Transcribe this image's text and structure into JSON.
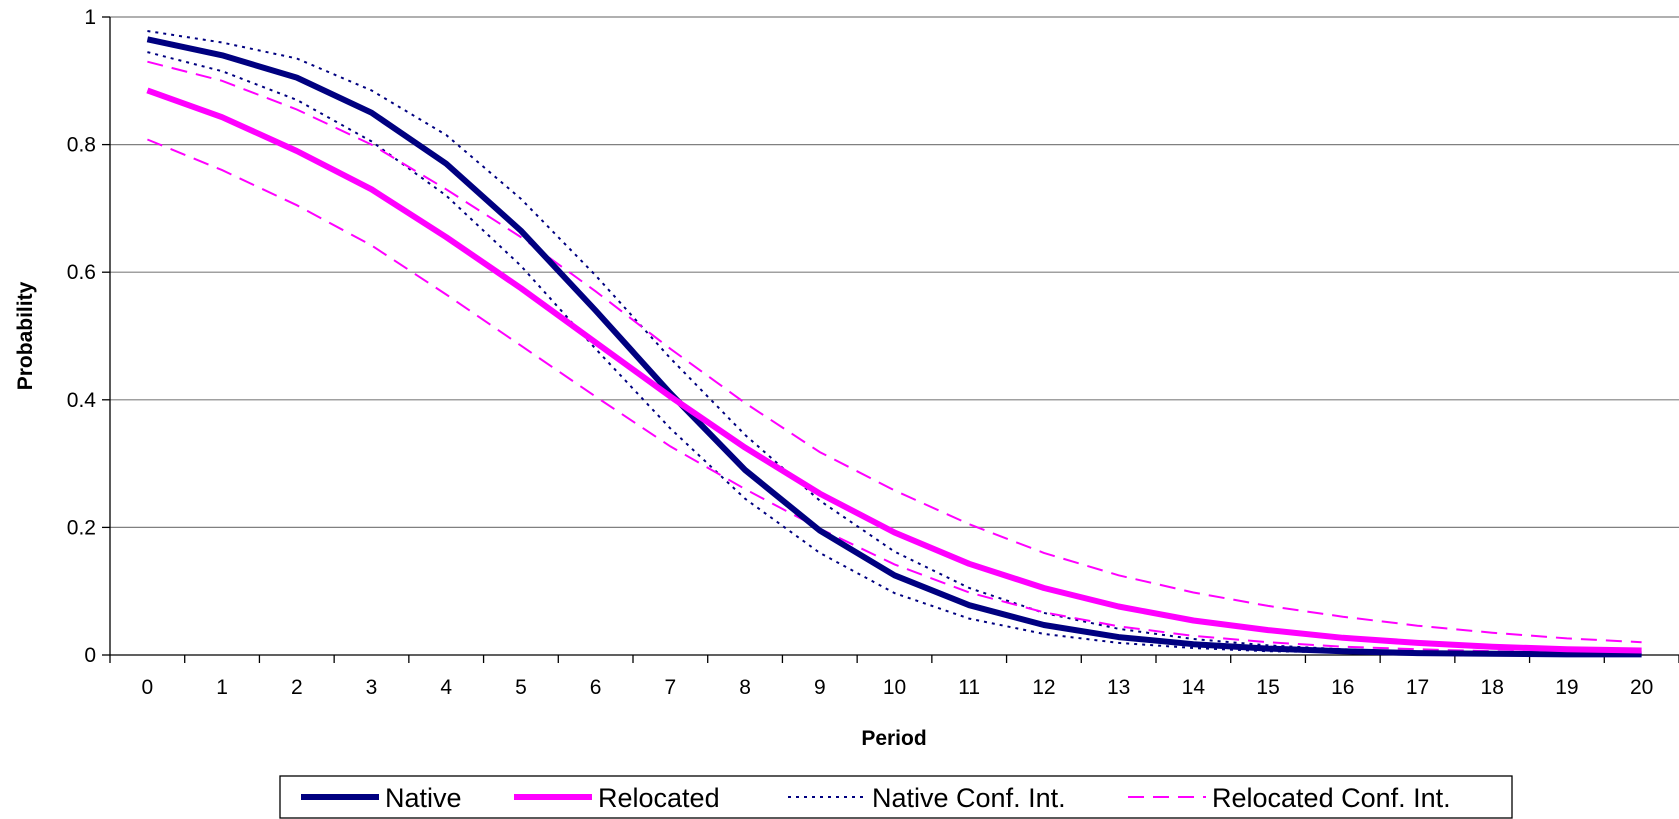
{
  "chart_data": {
    "type": "line",
    "title": "",
    "xlabel": "Period",
    "ylabel": "Probability",
    "x": [
      0,
      1,
      2,
      3,
      4,
      5,
      6,
      7,
      8,
      9,
      10,
      11,
      12,
      13,
      14,
      15,
      16,
      17,
      18,
      19,
      20
    ],
    "x_tick_labels": [
      "0",
      "1",
      "2",
      "3",
      "4",
      "5",
      "6",
      "7",
      "8",
      "9",
      "10",
      "11",
      "12",
      "13",
      "14",
      "15",
      "16",
      "17",
      "18",
      "19",
      "20"
    ],
    "xlim": [
      -0.5,
      20.5
    ],
    "ylim": [
      0,
      1
    ],
    "y_ticks": [
      0,
      0.2,
      0.4,
      0.6,
      0.8,
      1
    ],
    "y_tick_labels": [
      "0",
      "0.2",
      "0.4",
      "0.6",
      "0.8",
      "1"
    ],
    "grid": "horizontal",
    "legend_position": "bottom",
    "series": [
      {
        "name": "Native",
        "legend": "Native",
        "style": "solid-thick",
        "color": "#000080",
        "values": [
          0.965,
          0.94,
          0.905,
          0.85,
          0.77,
          0.665,
          0.54,
          0.41,
          0.29,
          0.195,
          0.125,
          0.078,
          0.047,
          0.028,
          0.017,
          0.01,
          0.006,
          0.003,
          0.002,
          0.001,
          0.001
        ]
      },
      {
        "name": "Relocated",
        "legend": "Relocated",
        "style": "solid-thick",
        "color": "#ff00ff",
        "values": [
          0.885,
          0.843,
          0.79,
          0.73,
          0.655,
          0.575,
          0.49,
          0.405,
          0.325,
          0.253,
          0.192,
          0.143,
          0.105,
          0.076,
          0.054,
          0.039,
          0.027,
          0.019,
          0.013,
          0.009,
          0.007
        ]
      },
      {
        "name": "Native Conf. Int. upper",
        "legend": "Native Conf. Int.",
        "style": "dotted",
        "color": "#000080",
        "values": [
          0.978,
          0.96,
          0.935,
          0.885,
          0.815,
          0.715,
          0.595,
          0.465,
          0.345,
          0.242,
          0.162,
          0.105,
          0.066,
          0.041,
          0.025,
          0.015,
          0.009,
          0.005,
          0.003,
          0.002,
          0.001
        ]
      },
      {
        "name": "Native Conf. Int. lower",
        "legend": "",
        "style": "dotted",
        "color": "#000080",
        "values": [
          0.945,
          0.915,
          0.87,
          0.805,
          0.72,
          0.61,
          0.48,
          0.355,
          0.245,
          0.16,
          0.097,
          0.057,
          0.033,
          0.019,
          0.011,
          0.006,
          0.004,
          0.002,
          0.001,
          0.001,
          0.0005
        ]
      },
      {
        "name": "Relocated Conf. Int. upper",
        "legend": "Relocated Conf. Int.",
        "style": "dashed",
        "color": "#ff00ff",
        "values": [
          0.93,
          0.9,
          0.855,
          0.8,
          0.73,
          0.655,
          0.57,
          0.48,
          0.395,
          0.318,
          0.258,
          0.205,
          0.16,
          0.125,
          0.098,
          0.077,
          0.06,
          0.046,
          0.035,
          0.026,
          0.02
        ]
      },
      {
        "name": "Relocated Conf. Int. lower",
        "legend": "",
        "style": "dashed",
        "color": "#ff00ff",
        "values": [
          0.808,
          0.76,
          0.705,
          0.642,
          0.565,
          0.485,
          0.405,
          0.327,
          0.26,
          0.198,
          0.142,
          0.098,
          0.067,
          0.045,
          0.03,
          0.02,
          0.013,
          0.009,
          0.006,
          0.004,
          0.003
        ]
      }
    ]
  },
  "legend": {
    "items": [
      {
        "label": "Native",
        "color": "#000080",
        "style": "solid-thick"
      },
      {
        "label": "Relocated",
        "color": "#ff00ff",
        "style": "solid-thick"
      },
      {
        "label": "Native Conf. Int.",
        "color": "#000080",
        "style": "dotted"
      },
      {
        "label": "Relocated Conf. Int.",
        "color": "#ff00ff",
        "style": "dashed"
      }
    ]
  }
}
